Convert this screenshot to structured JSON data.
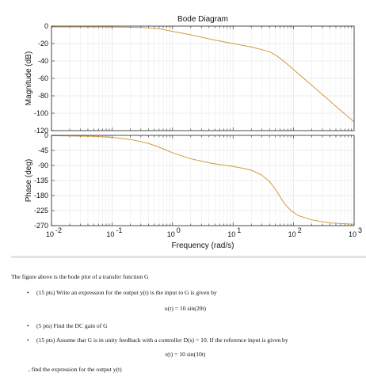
{
  "chart_data": [
    {
      "type": "line",
      "title": "Bode Diagram",
      "xlabel": "",
      "ylabel": "Magnitude (dB)",
      "xscale": "log",
      "xlim": [
        0.01,
        1000
      ],
      "ylim": [
        -120,
        0
      ],
      "yticks": [
        "0",
        "-20",
        "-40",
        "-60",
        "-80",
        "-100",
        "-120"
      ],
      "grid": true,
      "series": [
        {
          "color": "#d39a3c",
          "x": [
            0.01,
            0.1,
            0.3,
            0.6,
            1,
            2,
            5,
            10,
            20,
            30,
            40,
            50,
            60,
            80,
            100,
            200,
            500,
            1000
          ],
          "y": [
            -1,
            -1,
            -1.5,
            -3,
            -6,
            -10,
            -16,
            -20,
            -24,
            -27,
            -29.5,
            -33,
            -37,
            -44,
            -50,
            -68,
            -92,
            -110
          ]
        }
      ]
    },
    {
      "type": "line",
      "title": "",
      "xlabel": "Frequency  (rad/s)",
      "ylabel": "Phase (deg)",
      "xscale": "log",
      "xlim": [
        0.01,
        1000
      ],
      "ylim": [
        -270,
        0
      ],
      "xticks": [
        "10",
        "10",
        "10",
        "10",
        "10",
        "10"
      ],
      "xtick_exponents": [
        "-2",
        "-1",
        "0",
        "1",
        "2",
        "3"
      ],
      "yticks": [
        "0",
        "-45",
        "-90",
        "-135",
        "-180",
        "-225",
        "-270"
      ],
      "grid": true,
      "series": [
        {
          "color": "#d39a3c",
          "x": [
            0.01,
            0.05,
            0.1,
            0.2,
            0.4,
            0.7,
            1,
            2,
            4,
            7,
            10,
            15,
            20,
            30,
            40,
            50,
            60,
            70,
            90,
            120,
            200,
            400,
            1000
          ],
          "y": [
            -1,
            -3,
            -6,
            -12,
            -24,
            -40,
            -52,
            -70,
            -82,
            -89,
            -93,
            -99,
            -104,
            -119,
            -138,
            -161,
            -184,
            -203,
            -225,
            -240,
            -253,
            -262,
            -266
          ]
        }
      ]
    }
  ],
  "problem": {
    "intro": "The figure above is the bode plot of a transfer function G",
    "items": [
      {
        "bullet": "•",
        "text": "(15 pts) Write an expression for the output y(t) is the input to G is given by"
      },
      {
        "equation": "u(t) = 10 sin(20t)"
      },
      {
        "bullet": "•",
        "text": "(5 pts) Find the DC gain of G"
      },
      {
        "bullet": "•",
        "text": "(15 pts) Assume that G is in unity feedback with a controller D(s) = 10. If the reference input is given by"
      },
      {
        "equation": "r(t) = 10 sin(10t)"
      },
      {
        "text": ", find the expression for the output y(t)"
      }
    ]
  },
  "colors": {
    "curve": "#d39a3c",
    "grid": "#e8e8e8",
    "axis": "#222222"
  }
}
